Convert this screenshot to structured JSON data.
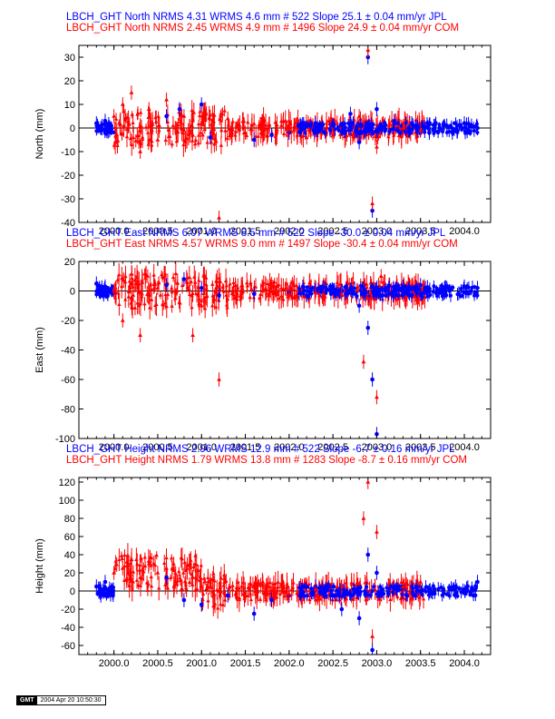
{
  "colors": {
    "jpl": "#0000ff",
    "com": "#ff0000",
    "axis": "#000000"
  },
  "stamp": {
    "logo": "GMT",
    "timestamp": "2004 Apr 20 10:50:30"
  },
  "chart_data": [
    {
      "type": "scatter",
      "ylabel": "North (mm)",
      "xlim": [
        1999.6,
        2004.3
      ],
      "ylim": [
        -40,
        35
      ],
      "xticks": [
        "2000.0",
        "2000.5",
        "2001.0",
        "2001.5",
        "2002.0",
        "2002.5",
        "2003.0",
        "2003.5",
        "2004.0"
      ],
      "yticks": [
        "30",
        "20",
        "10",
        "0",
        "-10",
        "-20",
        "-30",
        "-40"
      ],
      "ytick_values": [
        30,
        20,
        10,
        0,
        -10,
        -20,
        -30,
        -40
      ],
      "series": [
        {
          "name": "JPL",
          "header": "LBCH_GHT North NRMS 4.31 WRMS  4.6 mm # 522 Slope   25.1 ±  0.04 mm/yr JPL",
          "marker": "circle",
          "points": [
            [
              1999.8,
              2
            ],
            [
              1999.85,
              0
            ],
            [
              1999.9,
              3
            ],
            [
              1999.95,
              -1
            ],
            [
              2000.6,
              5
            ],
            [
              2000.75,
              8
            ],
            [
              2001.0,
              10
            ],
            [
              2001.1,
              -4
            ],
            [
              2001.6,
              -5
            ],
            [
              2001.8,
              -3
            ],
            [
              2002.0,
              -2
            ],
            [
              2002.3,
              2
            ],
            [
              2002.5,
              1
            ],
            [
              2002.7,
              6
            ],
            [
              2002.8,
              -6
            ],
            [
              2002.9,
              30
            ],
            [
              2002.95,
              -35
            ],
            [
              2003.0,
              8
            ],
            [
              2003.2,
              3
            ],
            [
              2003.4,
              2
            ],
            [
              2003.6,
              -2
            ],
            [
              2003.8,
              1
            ],
            [
              2004.0,
              2
            ],
            [
              2004.15,
              0
            ]
          ]
        },
        {
          "name": "COM",
          "header": "LBCH_GHT North NRMS 2.45 WRMS  4.9 mm # 1496 Slope   24.9 ±  0.04 mm/yr COM",
          "marker": "triangle",
          "points": [
            [
              2000.0,
              5
            ],
            [
              2000.1,
              10
            ],
            [
              2000.2,
              15
            ],
            [
              2000.3,
              -10
            ],
            [
              2000.4,
              8
            ],
            [
              2000.5,
              -5
            ],
            [
              2000.6,
              12
            ],
            [
              2000.7,
              0
            ],
            [
              2000.8,
              5
            ],
            [
              2000.9,
              -3
            ],
            [
              2001.0,
              2
            ],
            [
              2001.2,
              -38
            ],
            [
              2001.3,
              4
            ],
            [
              2001.5,
              -2
            ],
            [
              2001.7,
              3
            ],
            [
              2002.0,
              0
            ],
            [
              2002.2,
              -4
            ],
            [
              2002.5,
              -3
            ],
            [
              2002.8,
              5
            ],
            [
              2002.9,
              33
            ],
            [
              2002.95,
              -32
            ],
            [
              2003.0,
              -8
            ],
            [
              2003.3,
              0
            ],
            [
              2003.5,
              -1
            ]
          ]
        }
      ]
    },
    {
      "type": "scatter",
      "ylabel": "East (mm)",
      "xlim": [
        1999.6,
        2004.3
      ],
      "ylim": [
        -100,
        20
      ],
      "xticks": [
        "2000.0",
        "2000.5",
        "2001.0",
        "2001.5",
        "2002.0",
        "2002.5",
        "2003.0",
        "2003.5",
        "2004.0"
      ],
      "yticks": [
        "20",
        "0",
        "-20",
        "-40",
        "-60",
        "-80",
        "-100"
      ],
      "ytick_values": [
        20,
        0,
        -20,
        -40,
        -60,
        -80,
        -100
      ],
      "series": [
        {
          "name": "JPL",
          "header": "LBCH_GHT East NRMS 6.07 WRMS  8.5 mm # 522 Slope  -30.0 ±  0.04 mm/yr JPL",
          "marker": "circle",
          "points": [
            [
              1999.8,
              5
            ],
            [
              1999.9,
              3
            ],
            [
              2000.6,
              4
            ],
            [
              2000.8,
              8
            ],
            [
              2001.0,
              2
            ],
            [
              2001.2,
              -3
            ],
            [
              2001.6,
              -2
            ],
            [
              2002.0,
              -1
            ],
            [
              2002.3,
              0
            ],
            [
              2002.6,
              0
            ],
            [
              2002.8,
              -10
            ],
            [
              2002.9,
              -25
            ],
            [
              2002.95,
              -60
            ],
            [
              2003.0,
              -97
            ],
            [
              2003.1,
              0
            ],
            [
              2003.3,
              3
            ],
            [
              2003.5,
              4
            ],
            [
              2003.8,
              2
            ],
            [
              2004.0,
              3
            ],
            [
              2004.15,
              2
            ]
          ]
        },
        {
          "name": "COM",
          "header": "LBCH_GHT East NRMS 4.57 WRMS  9.0 mm # 1497 Slope  -30.4 ±  0.04 mm/yr COM",
          "marker": "triangle",
          "points": [
            [
              2000.0,
              0
            ],
            [
              2000.1,
              -20
            ],
            [
              2000.2,
              -5
            ],
            [
              2000.3,
              -30
            ],
            [
              2000.5,
              2
            ],
            [
              2000.7,
              -5
            ],
            [
              2000.9,
              -30
            ],
            [
              2001.0,
              -10
            ],
            [
              2001.2,
              -60
            ],
            [
              2001.4,
              -5
            ],
            [
              2001.7,
              0
            ],
            [
              2002.0,
              -2
            ],
            [
              2002.3,
              -1
            ],
            [
              2002.6,
              -2
            ],
            [
              2002.85,
              -48
            ],
            [
              2002.9,
              -5
            ],
            [
              2003.0,
              -72
            ],
            [
              2003.05,
              10
            ]
          ]
        }
      ]
    },
    {
      "type": "scatter",
      "ylabel": "Height (mm)",
      "xlim": [
        1999.6,
        2004.3
      ],
      "ylim": [
        -70,
        125
      ],
      "xticks": [
        "2000.0",
        "2000.5",
        "2001.0",
        "2001.5",
        "2002.0",
        "2002.5",
        "2003.0",
        "2003.5",
        "2004.0"
      ],
      "yticks": [
        "120",
        "100",
        "80",
        "60",
        "40",
        "20",
        "0",
        "-20",
        "-40",
        "-60"
      ],
      "ytick_values": [
        120,
        100,
        80,
        60,
        40,
        20,
        0,
        -20,
        -40,
        -60
      ],
      "series": [
        {
          "name": "JPL",
          "header": "LBCH_GHT Height NRMS 2.96 WRMS 12.9 mm # 522 Slope   -6.7 ±  0.16 mm/yr JPL",
          "marker": "circle",
          "points": [
            [
              1999.8,
              5
            ],
            [
              1999.85,
              -5
            ],
            [
              1999.9,
              10
            ],
            [
              2000.6,
              15
            ],
            [
              2000.8,
              -10
            ],
            [
              2001.0,
              -15
            ],
            [
              2001.3,
              -5
            ],
            [
              2001.6,
              -25
            ],
            [
              2001.8,
              -10
            ],
            [
              2002.0,
              -5
            ],
            [
              2002.3,
              5
            ],
            [
              2002.6,
              -20
            ],
            [
              2002.8,
              -30
            ],
            [
              2002.9,
              40
            ],
            [
              2002.95,
              -65
            ],
            [
              2003.0,
              20
            ],
            [
              2003.3,
              5
            ],
            [
              2003.6,
              0
            ],
            [
              2003.9,
              5
            ],
            [
              2004.15,
              10
            ]
          ]
        },
        {
          "name": "COM",
          "header": "LBCH_GHT Height NRMS 1.79 WRMS 13.8 mm # 1283 Slope   -8.7 ±  0.16 mm/yr COM",
          "marker": "triangle",
          "points": [
            [
              2000.0,
              20
            ],
            [
              2000.1,
              25
            ],
            [
              2000.2,
              35
            ],
            [
              2000.3,
              15
            ],
            [
              2000.4,
              30
            ],
            [
              2000.5,
              20
            ],
            [
              2000.6,
              25
            ],
            [
              2000.7,
              10
            ],
            [
              2000.9,
              15
            ],
            [
              2001.0,
              5
            ],
            [
              2001.2,
              0
            ],
            [
              2001.5,
              -5
            ],
            [
              2001.7,
              10
            ],
            [
              2002.0,
              -3
            ],
            [
              2002.3,
              2
            ],
            [
              2002.6,
              5
            ],
            [
              2002.85,
              80
            ],
            [
              2002.9,
              120
            ],
            [
              2002.95,
              -50
            ],
            [
              2003.0,
              65
            ],
            [
              2003.3,
              5
            ],
            [
              2003.5,
              10
            ]
          ]
        }
      ]
    }
  ]
}
